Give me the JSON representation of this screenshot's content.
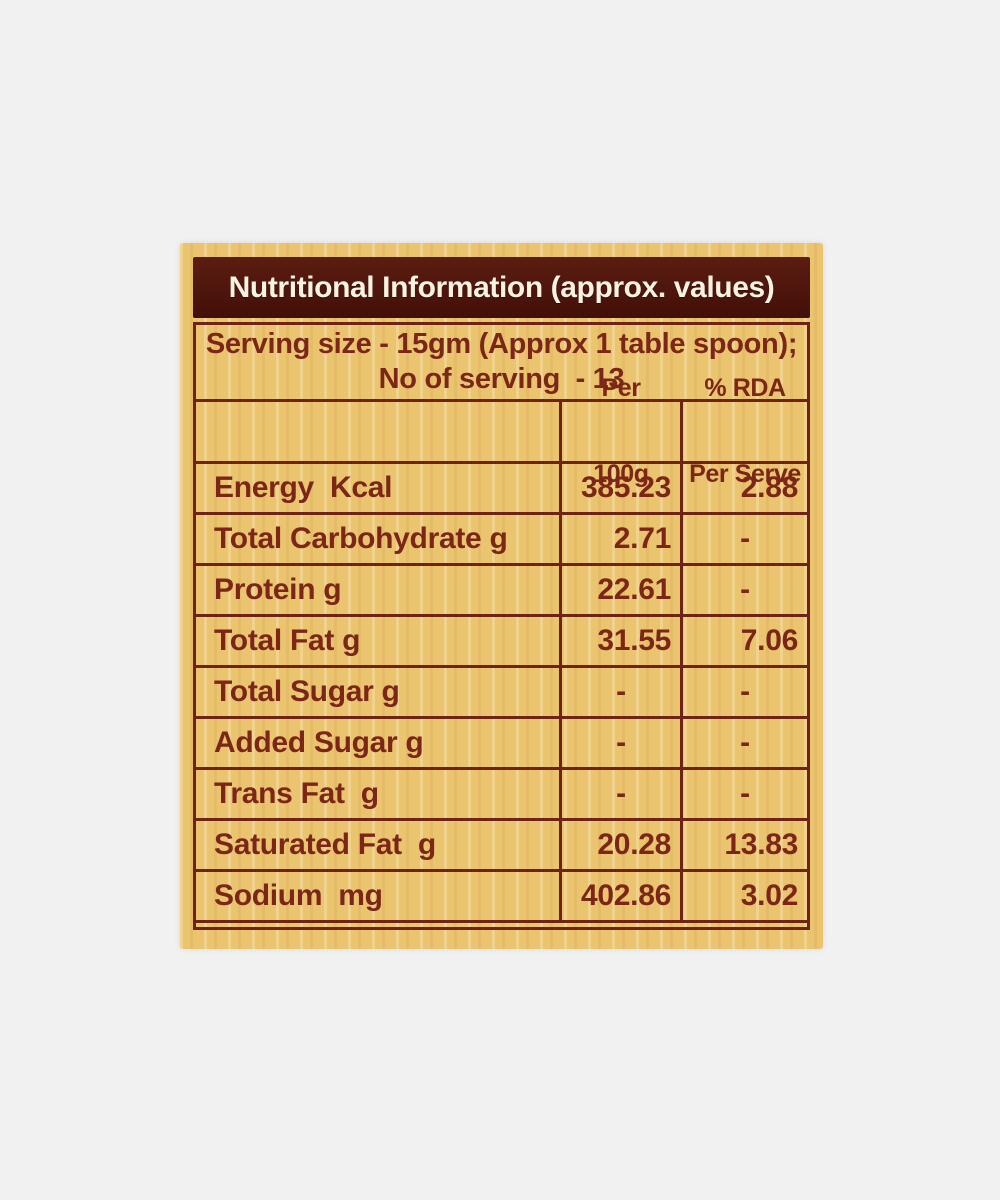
{
  "page": {
    "background_color": "#f1f1f2"
  },
  "label": {
    "background_color": "#eac46e",
    "bar_color": "#4d150d",
    "text_color": "#7b2616",
    "border_color": "#6f2316",
    "title": "Nutritional Information (approx. values)",
    "serving": {
      "line1": "Serving size - 15gm (Approx 1 table spoon);",
      "line2": "No of serving  - 13"
    },
    "columns": {
      "per_100g_line1": "Per",
      "per_100g_line2": "100g",
      "rda_line1": "% RDA",
      "rda_line2": "Per Serve"
    },
    "rows": [
      {
        "label": "Energy  Kcal",
        "per_100g": "385.23",
        "rda_per_serve": "2.88"
      },
      {
        "label": "Total Carbohydrate g",
        "per_100g": "2.71",
        "rda_per_serve": "-"
      },
      {
        "label": "Protein g",
        "per_100g": "22.61",
        "rda_per_serve": "-"
      },
      {
        "label": "Total Fat g",
        "per_100g": "31.55",
        "rda_per_serve": "7.06"
      },
      {
        "label": "Total Sugar g",
        "per_100g": "-",
        "rda_per_serve": "-"
      },
      {
        "label": "Added Sugar g",
        "per_100g": "-",
        "rda_per_serve": "-"
      },
      {
        "label": "Trans Fat  g",
        "per_100g": "-",
        "rda_per_serve": "-"
      },
      {
        "label": "Saturated Fat  g",
        "per_100g": "20.28",
        "rda_per_serve": "13.83"
      },
      {
        "label": "Sodium  mg",
        "per_100g": "402.86",
        "rda_per_serve": "3.02"
      }
    ]
  }
}
